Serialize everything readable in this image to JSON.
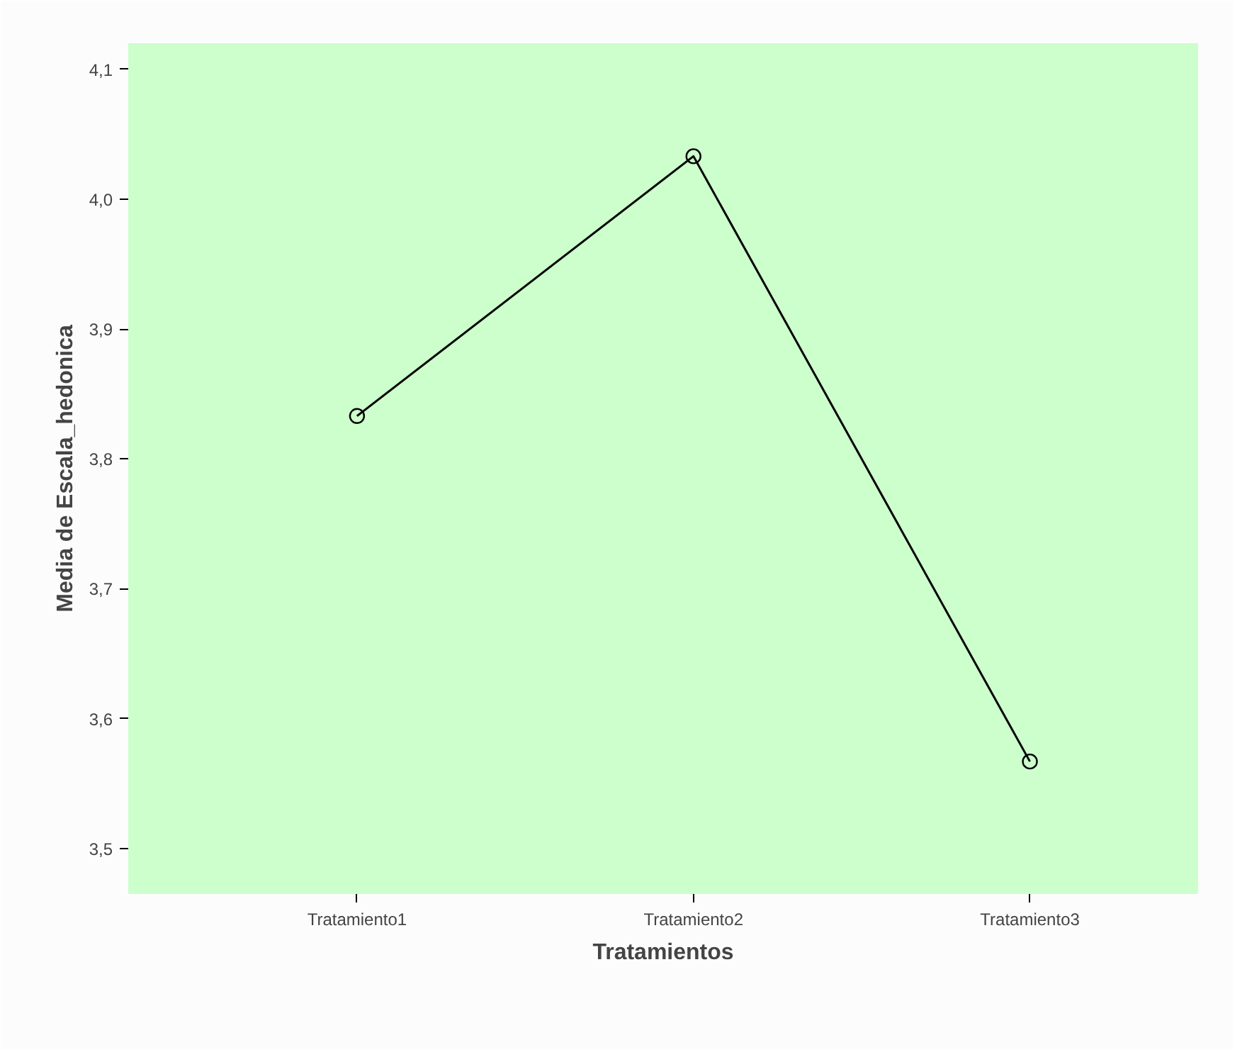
{
  "chart_data": {
    "type": "line",
    "xlabel": "Tratamientos",
    "ylabel": "Media de Escala_hedonica",
    "categories": [
      "Tratamiento1",
      "Tratamiento2",
      "Tratamiento3"
    ],
    "series": [
      {
        "color": "#000000",
        "values": [
          3.833,
          4.033,
          3.567
        ]
      }
    ],
    "ylim": [
      3.465,
      4.12
    ],
    "yticks": [
      {
        "value": 3.5,
        "label": "3,5"
      },
      {
        "value": 3.6,
        "label": "3,6"
      },
      {
        "value": 3.7,
        "label": "3,7"
      },
      {
        "value": 3.8,
        "label": "3,8"
      },
      {
        "value": 3.9,
        "label": "3,9"
      },
      {
        "value": 4.0,
        "label": "4,0"
      },
      {
        "value": 4.1,
        "label": "4,1"
      }
    ],
    "grid": false,
    "marker": "circle",
    "line_style": "solid"
  }
}
